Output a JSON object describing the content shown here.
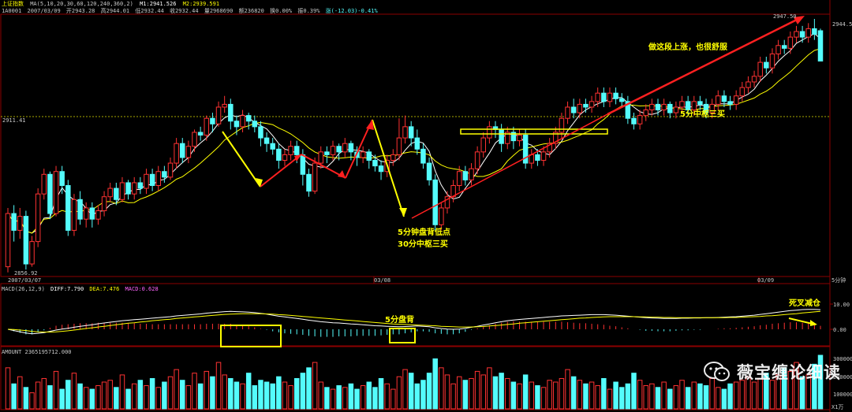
{
  "header": {
    "symbol": "上证指数",
    "ma_line": "MA(5,10,20,30,60,120,240,360,2)",
    "m1": "M1:2941.526",
    "m2": "M2:2939.591",
    "code": "1A0001",
    "date": "2007/03/09",
    "open": "开2943.28",
    "high": "高2944.01",
    "low": "低2932.44",
    "close": "收2932.44",
    "volume": "量2968690",
    "amount_label": "额236820",
    "turnover": "换0.00%",
    "amplitude": "振0.39%",
    "change": "涨(-12.03)-0.41%"
  },
  "price_labels": {
    "high_marker": "2947.50",
    "low_marker": "2856.92",
    "ref_line": "2911.41",
    "right_axis_top": "2944.5"
  },
  "time_axis": [
    "2007/03/07",
    "03/08",
    "03/09"
  ],
  "period_label": "5分钟",
  "macd_header": {
    "title": "MACD(26,12,9)",
    "diff": "DIFF:7.790",
    "dea": "DEA:7.476",
    "macd": "MACD:0.628"
  },
  "macd_axis": [
    "10.00",
    "0.00"
  ],
  "amount_header": "AMOUNT 2365195712.000",
  "amount_axis": [
    "300000",
    "200000",
    "100000"
  ],
  "amount_unit": "X1万",
  "annotations": {
    "rise": "做这段上涨，也很舒服",
    "pivot_5m": "5分中枢三买",
    "low_line1": "5分钟盘背低点",
    "low_line2": "30分中枢三买",
    "macd_div": "5分盘背",
    "death_cross": "死叉减仓"
  },
  "watermark": "薇宝缠论细读",
  "colors": {
    "up": "#ff3232",
    "down": "#54fcfc",
    "ma_fast": "#ffffff",
    "ma_slow": "#ffff00",
    "grid": "#8b0000",
    "ref": "#a8a800",
    "ann": "#ffff00",
    "arrow_red": "#ff2020",
    "arrow_yellow": "#ffff00"
  },
  "chart_data": {
    "type": "candlestick",
    "ylim": [
      2856.92,
      2947.5
    ],
    "candles": [
      [
        2859,
        2878,
        2857,
        2880
      ],
      [
        2878,
        2872,
        2868,
        2881
      ],
      [
        2872,
        2877,
        2869,
        2880
      ],
      [
        2877,
        2860,
        2858,
        2879
      ],
      [
        2860,
        2868,
        2859,
        2870
      ],
      [
        2868,
        2885,
        2866,
        2887
      ],
      [
        2885,
        2892,
        2883,
        2894
      ],
      [
        2892,
        2878,
        2876,
        2893
      ],
      [
        2878,
        2893,
        2877,
        2895
      ],
      [
        2893,
        2888,
        2885,
        2895
      ],
      [
        2888,
        2872,
        2870,
        2890
      ],
      [
        2872,
        2883,
        2870,
        2885
      ],
      [
        2883,
        2876,
        2874,
        2886
      ],
      [
        2876,
        2880,
        2873,
        2882
      ],
      [
        2880,
        2876,
        2873,
        2882
      ],
      [
        2876,
        2879,
        2874,
        2881
      ],
      [
        2879,
        2884,
        2877,
        2886
      ],
      [
        2884,
        2887,
        2882,
        2889
      ],
      [
        2887,
        2883,
        2881,
        2889
      ],
      [
        2883,
        2889,
        2882,
        2891
      ],
      [
        2889,
        2885,
        2883,
        2890
      ],
      [
        2885,
        2889,
        2883,
        2891
      ],
      [
        2889,
        2887,
        2885,
        2891
      ],
      [
        2887,
        2892,
        2885,
        2894
      ],
      [
        2892,
        2888,
        2886,
        2894
      ],
      [
        2888,
        2893,
        2886,
        2895
      ],
      [
        2893,
        2891,
        2889,
        2895
      ],
      [
        2891,
        2896,
        2890,
        2898
      ],
      [
        2896,
        2903,
        2894,
        2905
      ],
      [
        2903,
        2898,
        2896,
        2905
      ],
      [
        2898,
        2902,
        2896,
        2904
      ],
      [
        2902,
        2907,
        2900,
        2908
      ],
      [
        2907,
        2906,
        2904,
        2909
      ],
      [
        2906,
        2912,
        2904,
        2913
      ],
      [
        2912,
        2910,
        2907,
        2914
      ],
      [
        2910,
        2916,
        2909,
        2918
      ],
      [
        2916,
        2917,
        2914,
        2920
      ],
      [
        2917,
        2911,
        2908,
        2919
      ],
      [
        2911,
        2909,
        2906,
        2913
      ],
      [
        2909,
        2913,
        2907,
        2915
      ],
      [
        2913,
        2911,
        2908,
        2914
      ],
      [
        2911,
        2909,
        2907,
        2913
      ],
      [
        2909,
        2905,
        2902,
        2911
      ],
      [
        2905,
        2903,
        2900,
        2907
      ],
      [
        2903,
        2901,
        2899,
        2905
      ],
      [
        2901,
        2897,
        2894,
        2903
      ],
      [
        2897,
        2899,
        2895,
        2901
      ],
      [
        2899,
        2902,
        2897,
        2904
      ],
      [
        2902,
        2899,
        2896,
        2904
      ],
      [
        2899,
        2892,
        2888,
        2901
      ],
      [
        2892,
        2886,
        2884,
        2894
      ],
      [
        2886,
        2896,
        2885,
        2898
      ],
      [
        2896,
        2900,
        2894,
        2902
      ],
      [
        2900,
        2899,
        2896,
        2902
      ],
      [
        2899,
        2902,
        2897,
        2904
      ],
      [
        2902,
        2900,
        2897,
        2903
      ],
      [
        2900,
        2903,
        2898,
        2905
      ],
      [
        2903,
        2900,
        2897,
        2904
      ],
      [
        2900,
        2898,
        2895,
        2902
      ],
      [
        2898,
        2900,
        2896,
        2902
      ],
      [
        2900,
        2897,
        2894,
        2901
      ],
      [
        2897,
        2895,
        2893,
        2899
      ],
      [
        2895,
        2893,
        2890,
        2897
      ],
      [
        2893,
        2897,
        2891,
        2899
      ],
      [
        2897,
        2899,
        2895,
        2901
      ],
      [
        2899,
        2905,
        2897,
        2912
      ],
      [
        2905,
        2909,
        2903,
        2913
      ],
      [
        2909,
        2905,
        2902,
        2911
      ],
      [
        2905,
        2901,
        2899,
        2908
      ],
      [
        2901,
        2896,
        2894,
        2903
      ],
      [
        2896,
        2890,
        2888,
        2898
      ],
      [
        2890,
        2874,
        2872,
        2892
      ],
      [
        2874,
        2880,
        2872,
        2882
      ],
      [
        2880,
        2884,
        2878,
        2886
      ],
      [
        2884,
        2888,
        2882,
        2890
      ],
      [
        2888,
        2893,
        2886,
        2895
      ],
      [
        2893,
        2890,
        2888,
        2895
      ],
      [
        2890,
        2894,
        2888,
        2896
      ],
      [
        2894,
        2900,
        2892,
        2902
      ],
      [
        2900,
        2905,
        2898,
        2907
      ],
      [
        2905,
        2909,
        2903,
        2911
      ],
      [
        2909,
        2908,
        2905,
        2911
      ],
      [
        2908,
        2903,
        2900,
        2910
      ],
      [
        2903,
        2907,
        2901,
        2909
      ],
      [
        2907,
        2904,
        2901,
        2909
      ],
      [
        2904,
        2906,
        2902,
        2908
      ],
      [
        2906,
        2896,
        2894,
        2908
      ],
      [
        2896,
        2899,
        2894,
        2901
      ],
      [
        2899,
        2897,
        2895,
        2901
      ],
      [
        2897,
        2900,
        2895,
        2902
      ],
      [
        2900,
        2903,
        2898,
        2905
      ],
      [
        2903,
        2907,
        2901,
        2909
      ],
      [
        2907,
        2912,
        2905,
        2914
      ],
      [
        2912,
        2916,
        2910,
        2918
      ],
      [
        2916,
        2914,
        2912,
        2919
      ],
      [
        2914,
        2917,
        2912,
        2919
      ],
      [
        2917,
        2916,
        2914,
        2919
      ],
      [
        2916,
        2918,
        2914,
        2920
      ],
      [
        2918,
        2921,
        2916,
        2923
      ],
      [
        2921,
        2918,
        2916,
        2923
      ],
      [
        2918,
        2921,
        2916,
        2923
      ],
      [
        2921,
        2919,
        2917,
        2923
      ],
      [
        2919,
        2918,
        2916,
        2921
      ],
      [
        2918,
        2912,
        2910,
        2920
      ],
      [
        2912,
        2910,
        2908,
        2914
      ],
      [
        2910,
        2913,
        2908,
        2915
      ],
      [
        2913,
        2915,
        2911,
        2917
      ],
      [
        2915,
        2917,
        2913,
        2919
      ],
      [
        2917,
        2915,
        2913,
        2919
      ],
      [
        2915,
        2917,
        2913,
        2919
      ],
      [
        2917,
        2914,
        2912,
        2918
      ],
      [
        2914,
        2916,
        2912,
        2918
      ],
      [
        2916,
        2918,
        2914,
        2920
      ],
      [
        2918,
        2915,
        2913,
        2920
      ],
      [
        2915,
        2918,
        2913,
        2920
      ],
      [
        2918,
        2917,
        2915,
        2920
      ],
      [
        2917,
        2914,
        2912,
        2919
      ],
      [
        2914,
        2917,
        2912,
        2919
      ],
      [
        2917,
        2920,
        2915,
        2922
      ],
      [
        2920,
        2918,
        2916,
        2922
      ],
      [
        2918,
        2917,
        2915,
        2920
      ],
      [
        2917,
        2920,
        2915,
        2922
      ],
      [
        2920,
        2923,
        2918,
        2925
      ],
      [
        2923,
        2925,
        2921,
        2927
      ],
      [
        2925,
        2927,
        2923,
        2929
      ],
      [
        2927,
        2932,
        2925,
        2934
      ],
      [
        2932,
        2930,
        2928,
        2934
      ],
      [
        2930,
        2935,
        2928,
        2937
      ],
      [
        2935,
        2938,
        2933,
        2940
      ],
      [
        2938,
        2937,
        2935,
        2940
      ],
      [
        2937,
        2941,
        2935,
        2943
      ],
      [
        2941,
        2943,
        2939,
        2945
      ],
      [
        2943,
        2941,
        2939,
        2945
      ],
      [
        2941,
        2944,
        2939,
        2946
      ],
      [
        2944,
        2942,
        2940,
        2947.5
      ],
      [
        2943.28,
        2932.44,
        2932.44,
        2944.01
      ]
    ],
    "macd": {
      "diff": [
        0,
        -0.5,
        -1,
        -1.5,
        -1.8,
        -1.6,
        -1.3,
        -0.8,
        -0.3,
        0.1,
        0.4,
        0.8,
        1.2,
        1.5,
        1.8,
        2.2,
        2.5,
        2.8,
        3.1,
        3.4,
        3.6,
        3.8,
        4.0,
        4.2,
        4.4,
        4.6,
        4.8,
        5.0,
        5.3,
        5.5,
        5.7,
        5.9,
        6.1,
        6.4,
        6.6,
        6.8,
        7.0,
        7.1,
        7.0,
        6.9,
        6.8,
        6.6,
        6.3,
        6.0,
        5.6,
        5.2,
        4.9,
        4.6,
        4.3,
        4.0,
        3.6,
        3.3,
        3.0,
        2.8,
        2.6,
        2.5,
        2.3,
        2.1,
        2.0,
        1.8,
        1.6,
        1.4,
        1.3,
        1.2,
        1.1,
        1.0,
        1.1,
        1.2,
        1.3,
        1.2,
        1.0,
        0.6,
        0.3,
        0.1,
        0.0,
        0.1,
        0.4,
        0.8,
        1.2,
        1.7,
        2.1,
        2.6,
        3.0,
        3.4,
        3.7,
        3.9,
        4.1,
        4.3,
        4.5,
        4.7,
        4.9,
        5.1,
        5.3,
        5.4,
        5.5,
        5.6,
        5.7,
        5.8,
        5.8,
        5.8,
        5.7,
        5.6,
        5.4,
        5.2,
        5.0,
        4.8,
        4.6,
        4.5,
        4.4,
        4.3,
        4.3,
        4.3,
        4.4,
        4.4,
        4.5,
        4.5,
        4.6,
        4.6,
        4.7,
        4.8,
        4.9,
        5.0,
        5.2,
        5.4,
        5.6,
        5.9,
        6.2,
        6.5,
        6.8,
        7.1,
        7.4,
        7.6,
        7.8,
        7.9,
        7.9,
        7.79
      ],
      "dea": [
        0,
        -0.1,
        -0.3,
        -0.5,
        -0.8,
        -1.0,
        -1.1,
        -1.1,
        -1.0,
        -0.8,
        -0.6,
        -0.3,
        0.0,
        0.3,
        0.6,
        0.9,
        1.2,
        1.5,
        1.8,
        2.1,
        2.4,
        2.6,
        2.9,
        3.1,
        3.4,
        3.6,
        3.8,
        4.0,
        4.3,
        4.5,
        4.7,
        4.9,
        5.1,
        5.3,
        5.5,
        5.7,
        5.9,
        6.0,
        6.1,
        6.2,
        6.2,
        6.2,
        6.2,
        6.1,
        6.0,
        5.8,
        5.7,
        5.5,
        5.3,
        5.1,
        4.9,
        4.7,
        4.5,
        4.3,
        4.1,
        3.9,
        3.7,
        3.5,
        3.3,
        3.1,
        2.9,
        2.7,
        2.5,
        2.3,
        2.1,
        2.0,
        1.9,
        1.8,
        1.7,
        1.6,
        1.5,
        1.4,
        1.2,
        1.1,
        1.0,
        0.9,
        0.9,
        0.9,
        1.0,
        1.1,
        1.3,
        1.5,
        1.7,
        1.9,
        2.1,
        2.4,
        2.6,
        2.8,
        3.0,
        3.2,
        3.4,
        3.6,
        3.8,
        4.0,
        4.2,
        4.4,
        4.5,
        4.7,
        4.8,
        4.9,
        5.0,
        5.0,
        5.0,
        5.0,
        5.0,
        4.9,
        4.9,
        4.8,
        4.8,
        4.7,
        4.7,
        4.6,
        4.6,
        4.6,
        4.6,
        4.6,
        4.6,
        4.6,
        4.6,
        4.6,
        4.7,
        4.7,
        4.8,
        4.9,
        5.0,
        5.1,
        5.3,
        5.4,
        5.6,
        5.8,
        6.0,
        6.2,
        6.5,
        6.7,
        6.9,
        7.1,
        7.3,
        7.476
      ]
    },
    "amount": [
      230000,
      140000,
      180000,
      120000,
      90000,
      150000,
      170000,
      130000,
      210000,
      110000,
      160000,
      200000,
      140000,
      120000,
      110000,
      130000,
      150000,
      160000,
      120000,
      190000,
      110000,
      140000,
      160000,
      130000,
      170000,
      120000,
      150000,
      180000,
      220000,
      160000,
      130000,
      200000,
      140000,
      210000,
      180000,
      260000,
      190000,
      170000,
      150000,
      140000,
      200000,
      130000,
      160000,
      150000,
      140000,
      180000,
      150000,
      130000,
      170000,
      200000,
      230000,
      260000,
      150000,
      120000,
      110000,
      130000,
      120000,
      140000,
      110000,
      130000,
      150000,
      120000,
      170000,
      140000,
      110000,
      180000,
      220000,
      200000,
      140000,
      160000,
      200000,
      280000,
      230000,
      190000,
      140000,
      180000,
      160000,
      170000,
      210000,
      190000,
      230000,
      180000,
      200000,
      170000,
      150000,
      140000,
      190000,
      150000,
      130000,
      120000,
      160000,
      150000,
      170000,
      220000,
      180000,
      160000,
      140000,
      150000,
      130000,
      170000,
      110000,
      150000,
      120000,
      140000,
      200000,
      160000,
      130000,
      140000,
      120000,
      150000,
      110000,
      130000,
      160000,
      120000,
      150000,
      140000,
      130000,
      170000,
      120000,
      110000,
      140000,
      150000,
      160000,
      180000,
      150000,
      170000,
      200000,
      160000,
      190000,
      230000,
      210000,
      260000,
      180000,
      190000,
      250000,
      300000,
      210000,
      240000,
      230000,
      220000,
      200000,
      240000
    ]
  }
}
